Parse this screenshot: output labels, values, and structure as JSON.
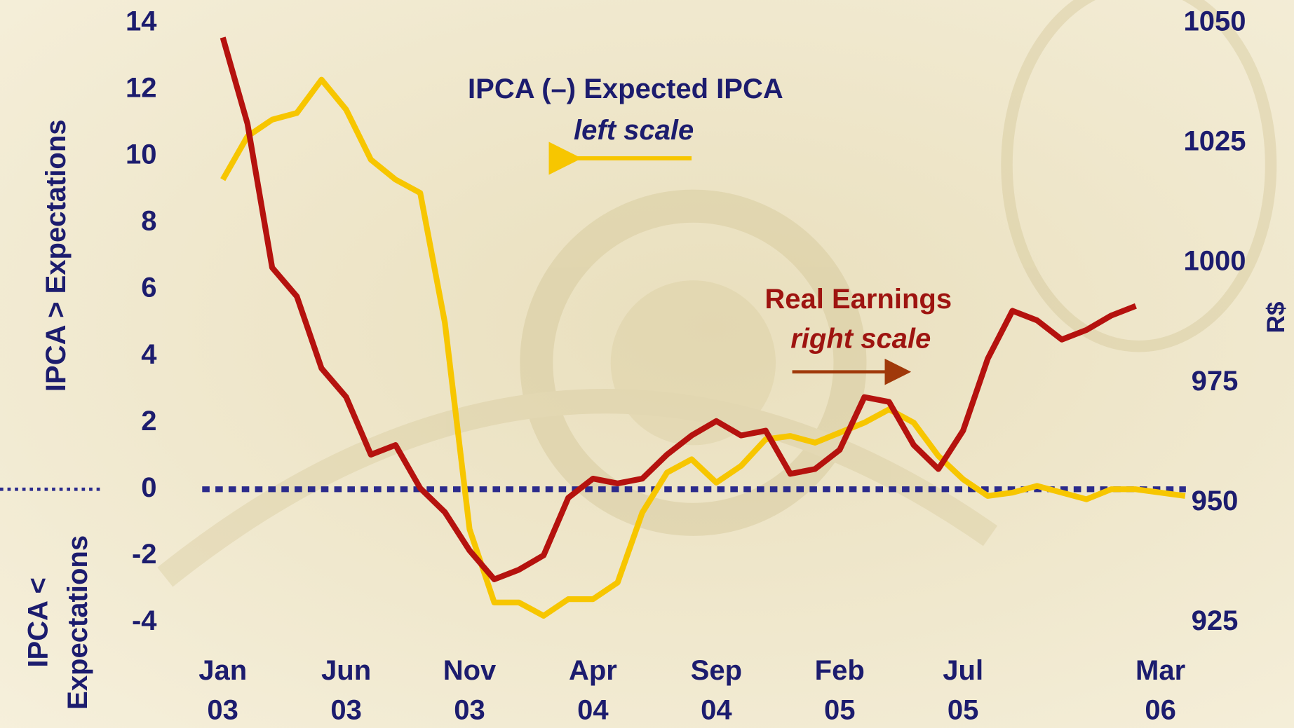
{
  "chart_data": {
    "type": "line",
    "categories": [
      "Jan 03",
      null,
      null,
      null,
      null,
      "Jun 03",
      null,
      null,
      null,
      null,
      "Nov 03",
      null,
      null,
      null,
      null,
      "Apr 04",
      null,
      null,
      null,
      null,
      "Sep 04",
      null,
      null,
      null,
      null,
      "Feb 05",
      null,
      null,
      null,
      null,
      "Jul 05",
      null,
      null,
      null,
      null,
      null,
      null,
      null,
      "Mar 06",
      null
    ],
    "series": [
      {
        "name": "IPCA (–) Expected IPCA",
        "note_label": "left scale",
        "color": "#f7c600",
        "axis": "y",
        "values": [
          9.3,
          10.6,
          11.1,
          11.3,
          12.3,
          11.4,
          9.9,
          9.3,
          8.9,
          5.0,
          -1.2,
          -3.4,
          -3.4,
          -3.8,
          -3.3,
          -3.3,
          -2.8,
          -0.7,
          0.5,
          0.9,
          0.2,
          0.7,
          1.5,
          1.6,
          1.4,
          1.7,
          2.0,
          2.4,
          2.0,
          1.0,
          0.3,
          -0.2,
          -0.1,
          0.1,
          -0.1,
          -0.3,
          0.0,
          0.0,
          -0.1,
          -0.2
        ]
      },
      {
        "name": "Real Earnings",
        "note_label": "right scale",
        "color": "#b5120e",
        "axis": "y2",
        "values": [
          1047,
          1029,
          999,
          993,
          978,
          972,
          960,
          962,
          953,
          948,
          940,
          934,
          936,
          939,
          951,
          955,
          954,
          955,
          960,
          964,
          967,
          964,
          965,
          956,
          957,
          961,
          972,
          971,
          962,
          957,
          965,
          980,
          990,
          988,
          984,
          986,
          989,
          991,
          null,
          null
        ]
      }
    ],
    "ylabel_upper": "IPCA > Expectations",
    "ylabel_lower": "IPCA < Expectations",
    "y2label": "R$",
    "ylim": [
      -4,
      14
    ],
    "yticks": [
      -4,
      -2,
      0,
      2,
      4,
      6,
      8,
      10,
      12,
      14
    ],
    "y2lim": [
      925,
      1050
    ],
    "y2ticks": [
      925,
      950,
      975,
      1000,
      1025,
      1050
    ],
    "reference_line": 0
  }
}
